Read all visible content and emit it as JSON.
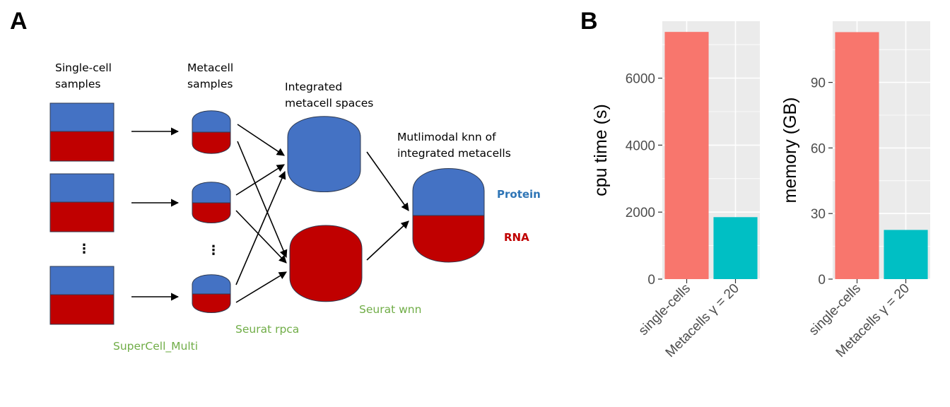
{
  "panel_a": {
    "letter": "A",
    "labels": {
      "single_cell_line1": "Single-cell",
      "single_cell_line2": "samples",
      "metacell_line1": "Metacell",
      "metacell_line2": "samples",
      "integrated_line1": "Integrated",
      "integrated_line2": "metacell spaces",
      "multimodal_line1": "Mutlimodal knn of",
      "multimodal_line2": "integrated metacells",
      "protein": "Protein",
      "rna": "RNA",
      "ellipsis": "⋮",
      "supercell_multi": "SuperCell_Multi",
      "seurat_rpca": "Seurat rpca",
      "seurat_wnn": "Seurat wnn"
    },
    "colors": {
      "protein_blue": "#4472c4",
      "rna_red": "#c00000",
      "method_green": "#70ad47"
    }
  },
  "panel_b": {
    "letter": "B",
    "colors": {
      "panel_bg": "#ebebeb",
      "grid": "#ffffff",
      "single_cells": "#f8766d",
      "metacells": "#00bfc4"
    }
  },
  "chart_data": [
    {
      "type": "bar",
      "categories": [
        "single-cells",
        "Metacells γ = 20"
      ],
      "values": [
        7380,
        1850
      ],
      "ylabel": "cpu time (s)",
      "yticks": [
        0,
        2000,
        4000,
        6000
      ],
      "ylim": [
        0,
        7700
      ],
      "grid": true
    },
    {
      "type": "bar",
      "categories": [
        "single-cells",
        "Metacells γ = 20"
      ],
      "values": [
        113,
        22.5
      ],
      "ylabel": "memory (GB)",
      "yticks": [
        0,
        30,
        60,
        90
      ],
      "ylim": [
        0,
        118
      ],
      "grid": true
    }
  ]
}
